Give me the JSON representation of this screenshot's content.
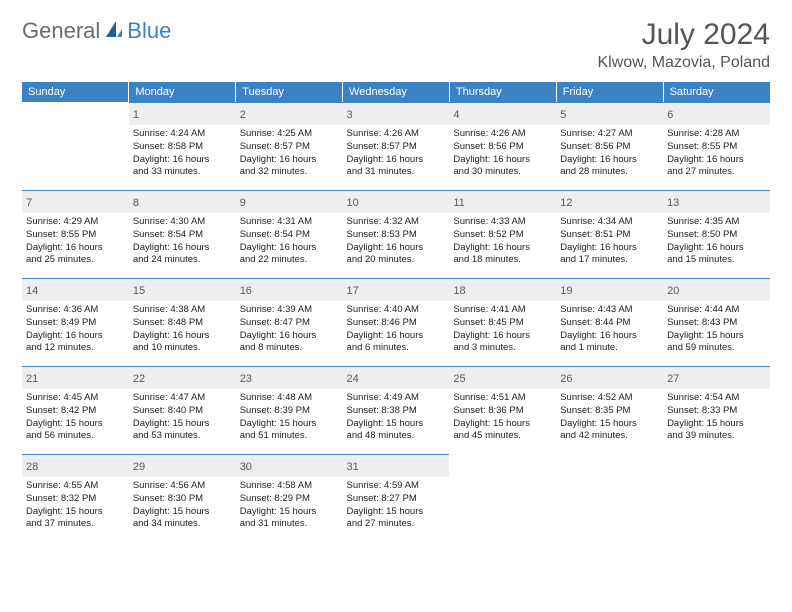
{
  "logo": {
    "text1": "General",
    "text2": "Blue"
  },
  "title": "July 2024",
  "location": "Klwow, Mazovia, Poland",
  "colors": {
    "header_bg": "#3b82c4",
    "day_label_bg": "#eceeef",
    "day_border_top": "#3b82c4",
    "text": "#333333"
  },
  "weekdays": [
    "Sunday",
    "Monday",
    "Tuesday",
    "Wednesday",
    "Thursday",
    "Friday",
    "Saturday"
  ],
  "weeks": [
    [
      {
        "day": "",
        "lines": []
      },
      {
        "day": "1",
        "lines": [
          "Sunrise: 4:24 AM",
          "Sunset: 8:58 PM",
          "Daylight: 16 hours",
          "and 33 minutes."
        ]
      },
      {
        "day": "2",
        "lines": [
          "Sunrise: 4:25 AM",
          "Sunset: 8:57 PM",
          "Daylight: 16 hours",
          "and 32 minutes."
        ]
      },
      {
        "day": "3",
        "lines": [
          "Sunrise: 4:26 AM",
          "Sunset: 8:57 PM",
          "Daylight: 16 hours",
          "and 31 minutes."
        ]
      },
      {
        "day": "4",
        "lines": [
          "Sunrise: 4:26 AM",
          "Sunset: 8:56 PM",
          "Daylight: 16 hours",
          "and 30 minutes."
        ]
      },
      {
        "day": "5",
        "lines": [
          "Sunrise: 4:27 AM",
          "Sunset: 8:56 PM",
          "Daylight: 16 hours",
          "and 28 minutes."
        ]
      },
      {
        "day": "6",
        "lines": [
          "Sunrise: 4:28 AM",
          "Sunset: 8:55 PM",
          "Daylight: 16 hours",
          "and 27 minutes."
        ]
      }
    ],
    [
      {
        "day": "7",
        "lines": [
          "Sunrise: 4:29 AM",
          "Sunset: 8:55 PM",
          "Daylight: 16 hours",
          "and 25 minutes."
        ]
      },
      {
        "day": "8",
        "lines": [
          "Sunrise: 4:30 AM",
          "Sunset: 8:54 PM",
          "Daylight: 16 hours",
          "and 24 minutes."
        ]
      },
      {
        "day": "9",
        "lines": [
          "Sunrise: 4:31 AM",
          "Sunset: 8:54 PM",
          "Daylight: 16 hours",
          "and 22 minutes."
        ]
      },
      {
        "day": "10",
        "lines": [
          "Sunrise: 4:32 AM",
          "Sunset: 8:53 PM",
          "Daylight: 16 hours",
          "and 20 minutes."
        ]
      },
      {
        "day": "11",
        "lines": [
          "Sunrise: 4:33 AM",
          "Sunset: 8:52 PM",
          "Daylight: 16 hours",
          "and 18 minutes."
        ]
      },
      {
        "day": "12",
        "lines": [
          "Sunrise: 4:34 AM",
          "Sunset: 8:51 PM",
          "Daylight: 16 hours",
          "and 17 minutes."
        ]
      },
      {
        "day": "13",
        "lines": [
          "Sunrise: 4:35 AM",
          "Sunset: 8:50 PM",
          "Daylight: 16 hours",
          "and 15 minutes."
        ]
      }
    ],
    [
      {
        "day": "14",
        "lines": [
          "Sunrise: 4:36 AM",
          "Sunset: 8:49 PM",
          "Daylight: 16 hours",
          "and 12 minutes."
        ]
      },
      {
        "day": "15",
        "lines": [
          "Sunrise: 4:38 AM",
          "Sunset: 8:48 PM",
          "Daylight: 16 hours",
          "and 10 minutes."
        ]
      },
      {
        "day": "16",
        "lines": [
          "Sunrise: 4:39 AM",
          "Sunset: 8:47 PM",
          "Daylight: 16 hours",
          "and 8 minutes."
        ]
      },
      {
        "day": "17",
        "lines": [
          "Sunrise: 4:40 AM",
          "Sunset: 8:46 PM",
          "Daylight: 16 hours",
          "and 6 minutes."
        ]
      },
      {
        "day": "18",
        "lines": [
          "Sunrise: 4:41 AM",
          "Sunset: 8:45 PM",
          "Daylight: 16 hours",
          "and 3 minutes."
        ]
      },
      {
        "day": "19",
        "lines": [
          "Sunrise: 4:43 AM",
          "Sunset: 8:44 PM",
          "Daylight: 16 hours",
          "and 1 minute."
        ]
      },
      {
        "day": "20",
        "lines": [
          "Sunrise: 4:44 AM",
          "Sunset: 8:43 PM",
          "Daylight: 15 hours",
          "and 59 minutes."
        ]
      }
    ],
    [
      {
        "day": "21",
        "lines": [
          "Sunrise: 4:45 AM",
          "Sunset: 8:42 PM",
          "Daylight: 15 hours",
          "and 56 minutes."
        ]
      },
      {
        "day": "22",
        "lines": [
          "Sunrise: 4:47 AM",
          "Sunset: 8:40 PM",
          "Daylight: 15 hours",
          "and 53 minutes."
        ]
      },
      {
        "day": "23",
        "lines": [
          "Sunrise: 4:48 AM",
          "Sunset: 8:39 PM",
          "Daylight: 15 hours",
          "and 51 minutes."
        ]
      },
      {
        "day": "24",
        "lines": [
          "Sunrise: 4:49 AM",
          "Sunset: 8:38 PM",
          "Daylight: 15 hours",
          "and 48 minutes."
        ]
      },
      {
        "day": "25",
        "lines": [
          "Sunrise: 4:51 AM",
          "Sunset: 8:36 PM",
          "Daylight: 15 hours",
          "and 45 minutes."
        ]
      },
      {
        "day": "26",
        "lines": [
          "Sunrise: 4:52 AM",
          "Sunset: 8:35 PM",
          "Daylight: 15 hours",
          "and 42 minutes."
        ]
      },
      {
        "day": "27",
        "lines": [
          "Sunrise: 4:54 AM",
          "Sunset: 8:33 PM",
          "Daylight: 15 hours",
          "and 39 minutes."
        ]
      }
    ],
    [
      {
        "day": "28",
        "lines": [
          "Sunrise: 4:55 AM",
          "Sunset: 8:32 PM",
          "Daylight: 15 hours",
          "and 37 minutes."
        ]
      },
      {
        "day": "29",
        "lines": [
          "Sunrise: 4:56 AM",
          "Sunset: 8:30 PM",
          "Daylight: 15 hours",
          "and 34 minutes."
        ]
      },
      {
        "day": "30",
        "lines": [
          "Sunrise: 4:58 AM",
          "Sunset: 8:29 PM",
          "Daylight: 15 hours",
          "and 31 minutes."
        ]
      },
      {
        "day": "31",
        "lines": [
          "Sunrise: 4:59 AM",
          "Sunset: 8:27 PM",
          "Daylight: 15 hours",
          "and 27 minutes."
        ]
      },
      {
        "day": "",
        "lines": []
      },
      {
        "day": "",
        "lines": []
      },
      {
        "day": "",
        "lines": []
      }
    ]
  ]
}
